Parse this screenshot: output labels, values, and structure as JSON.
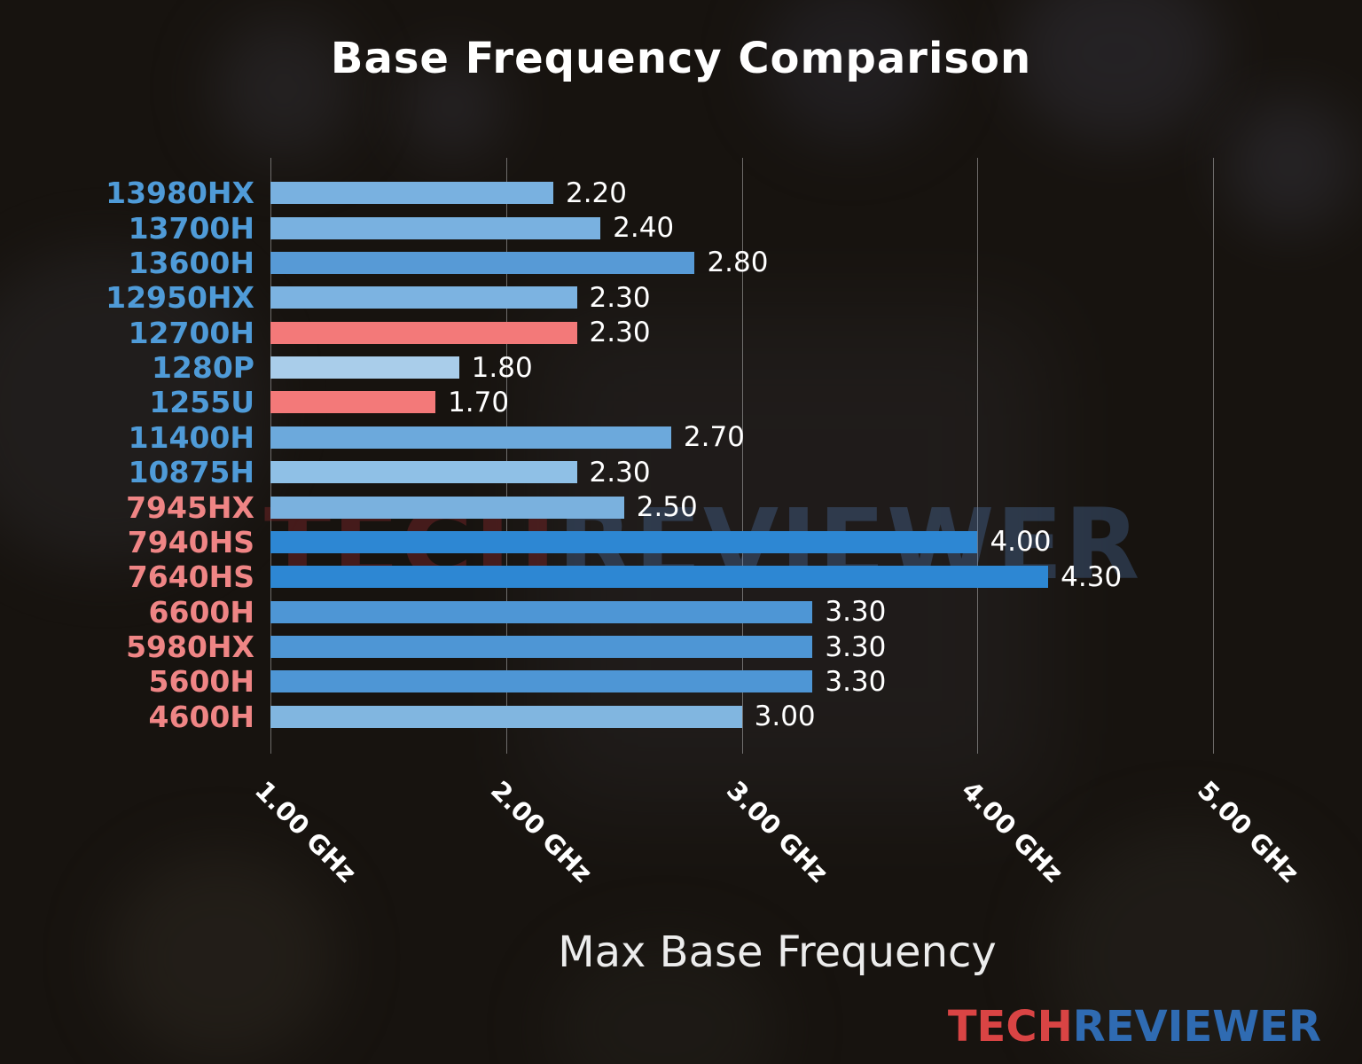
{
  "page": {
    "title": "Base Frequency Comparison",
    "xlabel": "Max Base Frequency",
    "watermark": {
      "part1": "TECH",
      "part2": "REVIEWER"
    },
    "logo": {
      "part1": "TECH",
      "part2": "REVIEWER"
    },
    "colors": {
      "title_text": "#ffffff",
      "value_text": "#ffffff",
      "intel_label": "#4f9bd8",
      "amd_label": "#ef8585",
      "highlight_bar": "#f37979",
      "logo_tech": "#d94444",
      "logo_reviewer": "#2f6bb2"
    }
  },
  "chart_data": {
    "type": "bar",
    "orientation": "horizontal",
    "title": "Base Frequency Comparison",
    "xlabel": "Max Base Frequency",
    "grid": true,
    "legend": "none",
    "x_axis": {
      "min": 1.0,
      "max": 5.3,
      "unit": "GHz",
      "ticks": [
        {
          "value": 1.0,
          "label": "1.00 GHz"
        },
        {
          "value": 2.0,
          "label": "2.00 GHz"
        },
        {
          "value": 3.0,
          "label": "3.00 GHz"
        },
        {
          "value": 4.0,
          "label": "4.00 GHz"
        },
        {
          "value": 5.0,
          "label": "5.00 GHz"
        }
      ]
    },
    "bars": [
      {
        "category": "13980HX",
        "value": 2.2,
        "display": "2.20",
        "bar_color": "#79b1e0",
        "label_color": "#4f9bd8"
      },
      {
        "category": "13700H",
        "value": 2.4,
        "display": "2.40",
        "bar_color": "#79b1e0",
        "label_color": "#4f9bd8"
      },
      {
        "category": "13600H",
        "value": 2.8,
        "display": "2.80",
        "bar_color": "#579ad6",
        "label_color": "#4f9bd8"
      },
      {
        "category": "12950HX",
        "value": 2.3,
        "display": "2.30",
        "bar_color": "#7cb3e1",
        "label_color": "#4f9bd8"
      },
      {
        "category": "12700H",
        "value": 2.3,
        "display": "2.30",
        "bar_color": "#f37979",
        "label_color": "#4f9bd8"
      },
      {
        "category": "1280P",
        "value": 1.8,
        "display": "1.80",
        "bar_color": "#a9cdea",
        "label_color": "#4f9bd8"
      },
      {
        "category": "1255U",
        "value": 1.7,
        "display": "1.70",
        "bar_color": "#f37979",
        "label_color": "#4f9bd8"
      },
      {
        "category": "11400H",
        "value": 2.7,
        "display": "2.70",
        "bar_color": "#6ca9dc",
        "label_color": "#4f9bd8"
      },
      {
        "category": "10875H",
        "value": 2.3,
        "display": "2.30",
        "bar_color": "#8fc0e6",
        "label_color": "#4f9bd8"
      },
      {
        "category": "7945HX",
        "value": 2.5,
        "display": "2.50",
        "bar_color": "#7ab1de",
        "label_color": "#ef8585"
      },
      {
        "category": "7940HS",
        "value": 4.0,
        "display": "4.00",
        "bar_color": "#2d87d3",
        "label_color": "#ef8585"
      },
      {
        "category": "7640HS",
        "value": 4.3,
        "display": "4.30",
        "bar_color": "#2d87d3",
        "label_color": "#ef8585"
      },
      {
        "category": "6600H",
        "value": 3.3,
        "display": "3.30",
        "bar_color": "#4e96d5",
        "label_color": "#ef8585"
      },
      {
        "category": "5980HX",
        "value": 3.3,
        "display": "3.30",
        "bar_color": "#4e96d5",
        "label_color": "#ef8585"
      },
      {
        "category": "5600H",
        "value": 3.3,
        "display": "3.30",
        "bar_color": "#4e96d5",
        "label_color": "#ef8585"
      },
      {
        "category": "4600H",
        "value": 3.0,
        "display": "3.00",
        "bar_color": "#81b6e0",
        "label_color": "#ef8585"
      }
    ]
  }
}
